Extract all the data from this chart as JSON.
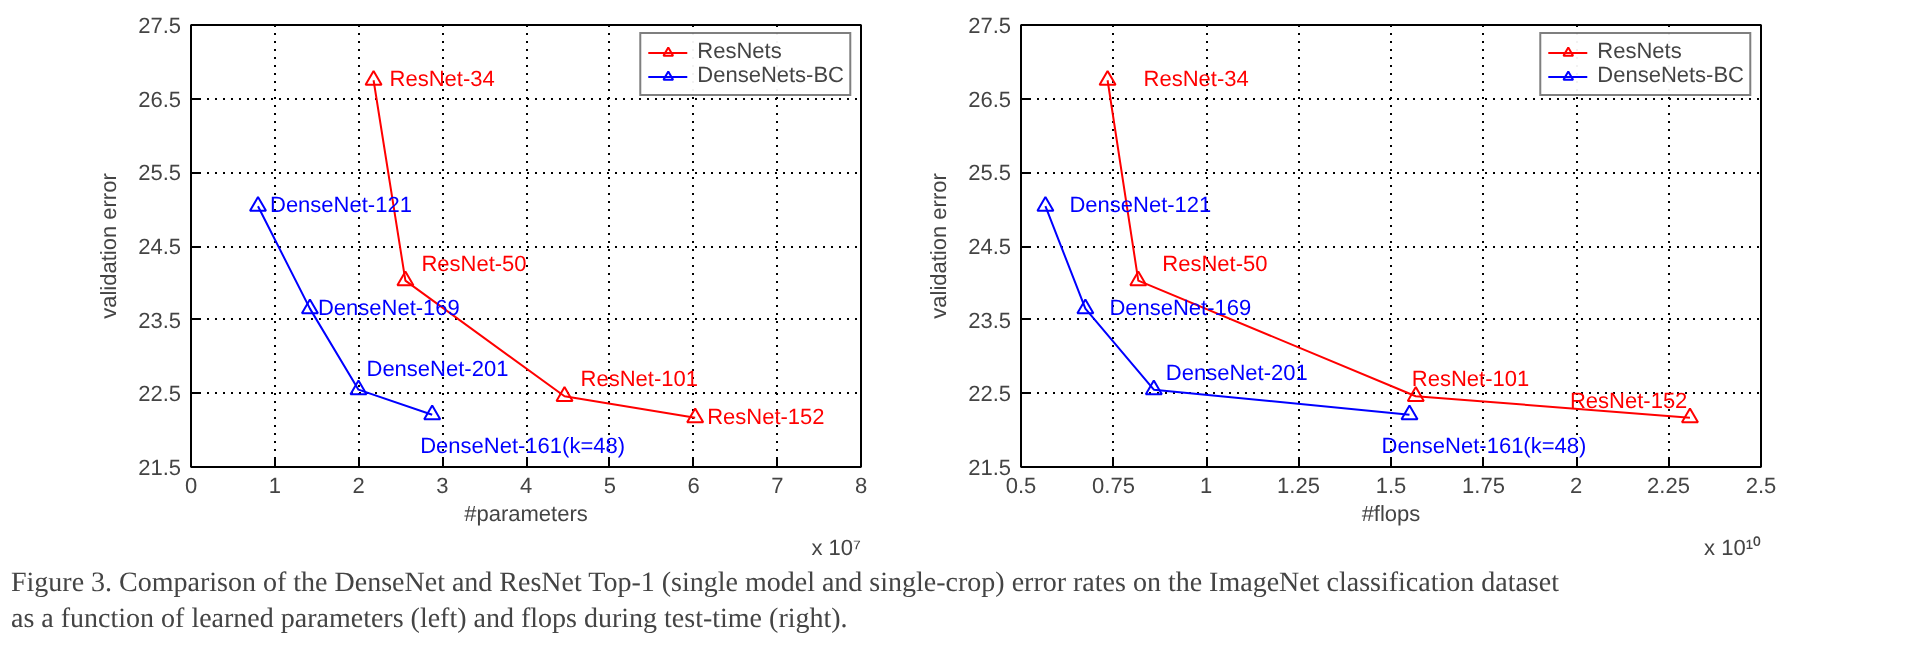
{
  "chart_data": [
    {
      "type": "line",
      "xlabel": "#parameters",
      "ylabel": "validation error",
      "xlim": [
        0,
        8
      ],
      "xticks": [
        0,
        1,
        2,
        3,
        4,
        5,
        6,
        7,
        8
      ],
      "ylim": [
        21.5,
        27.5
      ],
      "yticks": [
        21.5,
        22.5,
        23.5,
        24.5,
        25.5,
        26.5,
        27.5
      ],
      "grid": true,
      "legend": "top right",
      "marker": "triangle",
      "line_style": "solid",
      "series": [
        {
          "name": "ResNets",
          "color": "#ff0000",
          "x": [
            2.18,
            2.56,
            4.46,
            6.02
          ],
          "values": [
            26.75,
            24.03,
            22.46,
            22.17
          ]
        },
        {
          "name": "DenseNets-BC",
          "color": "#0000ff",
          "x": [
            0.8,
            1.42,
            2.0,
            2.88
          ],
          "values": [
            25.04,
            23.65,
            22.55,
            22.21
          ]
        }
      ],
      "annotations": [
        {
          "text": "ResNet-34",
          "x": 2.18,
          "y": 26.75
        },
        {
          "text": "ResNet-50",
          "x": 2.56,
          "y": 24.03
        },
        {
          "text": "ResNet-101",
          "x": 4.46,
          "y": 22.46
        },
        {
          "text": "ResNet-152",
          "x": 6.02,
          "y": 22.17
        },
        {
          "text": "DenseNet-121",
          "x": 0.8,
          "y": 25.04
        },
        {
          "text": "DenseNet-169",
          "x": 1.42,
          "y": 23.65
        },
        {
          "text": "DenseNet-201",
          "x": 2.0,
          "y": 22.55
        },
        {
          "text": "DenseNet-161(k=48)",
          "x": 2.88,
          "y": 22.21
        },
        "x 10⁷",
        "Figure 3. Comparison of the DenseNet and ResNet Top-1 (single model and single-crop) error rates on the ImageNet classification dataset as a function of learned parameters (left) and flops during test-time (right)."
      ]
    },
    {
      "type": "line",
      "xlabel": "#flops",
      "ylabel": "validation error",
      "xlim": [
        0.5,
        2.5
      ],
      "xticks": [
        0.5,
        0.75,
        1,
        1.25,
        1.5,
        1.75,
        2,
        2.25,
        2.5
      ],
      "ylim": [
        21.5,
        27.5
      ],
      "yticks": [
        21.5,
        22.5,
        23.5,
        24.5,
        25.5,
        26.5,
        27.5
      ],
      "grid": true,
      "legend": "top right",
      "marker": "triangle",
      "line_style": "solid",
      "series": [
        {
          "name": "ResNets",
          "color": "#ff0000",
          "x": [
            0.734,
            0.817,
            1.567,
            2.308
          ],
          "values": [
            26.75,
            24.03,
            22.46,
            22.17
          ]
        },
        {
          "name": "DenseNets-BC",
          "color": "#0000ff",
          "x": [
            0.566,
            0.674,
            0.859,
            1.55
          ],
          "values": [
            25.04,
            23.65,
            22.55,
            22.21
          ]
        }
      ],
      "annotations": [
        {
          "text": "ResNet-34",
          "x": 0.734,
          "y": 26.75
        },
        {
          "text": "ResNet-50",
          "x": 0.817,
          "y": 24.03
        },
        {
          "text": "ResNet-101",
          "x": 1.567,
          "y": 22.46
        },
        {
          "text": "ResNet-152",
          "x": 2.308,
          "y": 22.17
        },
        {
          "text": "DenseNet-121",
          "x": 0.566,
          "y": 25.04
        },
        {
          "text": "DenseNet-169",
          "x": 0.674,
          "y": 23.65
        },
        {
          "text": "DenseNet-201",
          "x": 0.859,
          "y": 22.55
        },
        {
          "text": "DenseNet-161(k=48)",
          "x": 1.55,
          "y": 22.21
        },
        "x 10¹⁰"
      ]
    }
  ]
}
